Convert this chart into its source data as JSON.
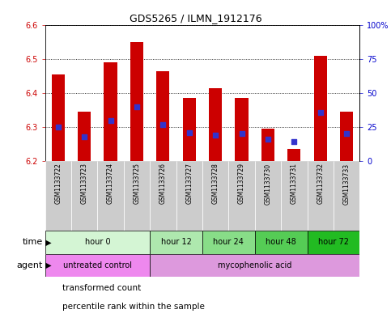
{
  "title": "GDS5265 / ILMN_1912176",
  "samples": [
    "GSM1133722",
    "GSM1133723",
    "GSM1133724",
    "GSM1133725",
    "GSM1133726",
    "GSM1133727",
    "GSM1133728",
    "GSM1133729",
    "GSM1133730",
    "GSM1133731",
    "GSM1133732",
    "GSM1133733"
  ],
  "transformed_counts": [
    6.455,
    6.345,
    6.49,
    6.55,
    6.465,
    6.385,
    6.415,
    6.385,
    6.295,
    6.235,
    6.51,
    6.345
  ],
  "percentile_ranks": [
    25,
    18,
    30,
    40,
    27,
    21,
    19,
    20,
    16,
    14,
    36,
    20
  ],
  "ylim_left": [
    6.2,
    6.6
  ],
  "ylim_right": [
    0,
    100
  ],
  "yticks_left": [
    6.2,
    6.3,
    6.4,
    6.5,
    6.6
  ],
  "yticks_right": [
    0,
    25,
    50,
    75,
    100
  ],
  "bar_color": "#cc0000",
  "bar_base": 6.2,
  "dot_color": "#3333cc",
  "time_groups": [
    {
      "label": "hour 0",
      "start": 0,
      "end": 3,
      "color": "#d4f5d4"
    },
    {
      "label": "hour 12",
      "start": 4,
      "end": 5,
      "color": "#aee8ae"
    },
    {
      "label": "hour 24",
      "start": 6,
      "end": 7,
      "color": "#88dd88"
    },
    {
      "label": "hour 48",
      "start": 8,
      "end": 9,
      "color": "#55cc55"
    },
    {
      "label": "hour 72",
      "start": 10,
      "end": 11,
      "color": "#22bb22"
    }
  ],
  "agent_groups": [
    {
      "label": "untreated control",
      "start": 0,
      "end": 3,
      "color": "#ee88ee"
    },
    {
      "label": "mycophenolic acid",
      "start": 4,
      "end": 11,
      "color": "#dd99dd"
    }
  ],
  "legend_bar_label": "transformed count",
  "legend_dot_label": "percentile rank within the sample",
  "bar_color_legend": "#cc0000",
  "dot_color_legend": "#3333cc",
  "left_axis_color": "#cc0000",
  "right_axis_color": "#0000cc",
  "sample_bg_color": "#cccccc",
  "fig_width": 4.83,
  "fig_height": 3.93
}
